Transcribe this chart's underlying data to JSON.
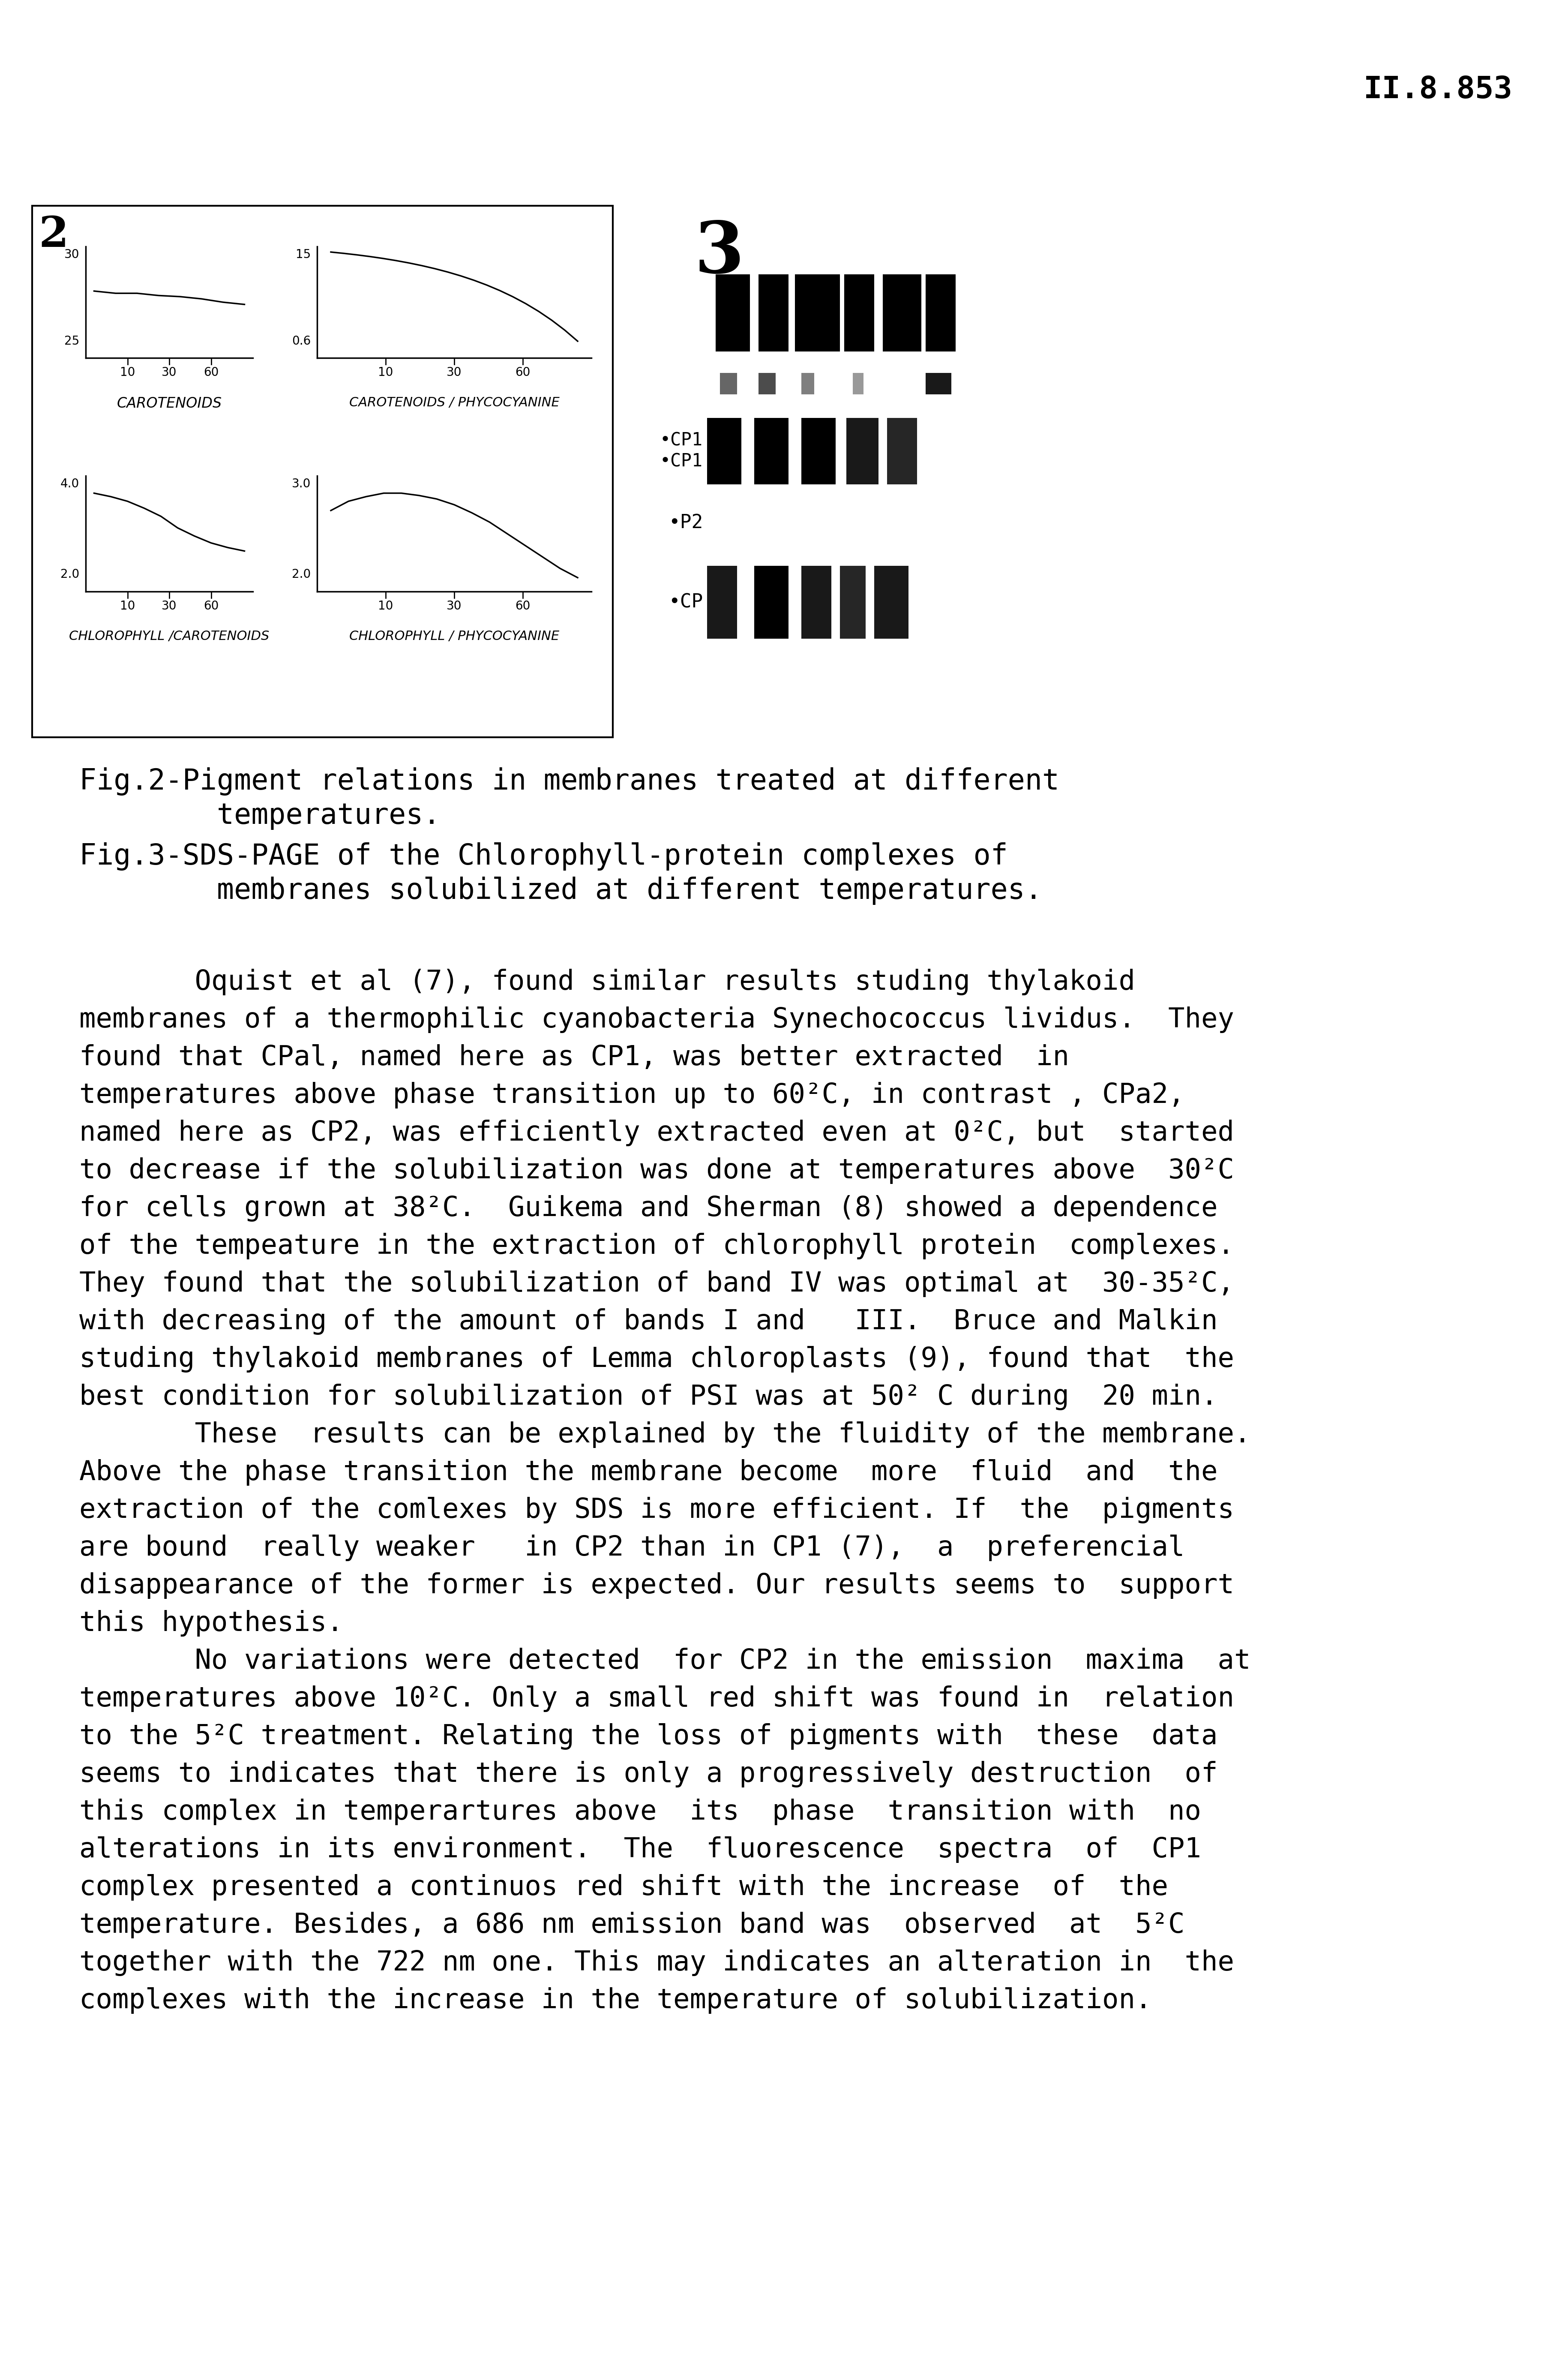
{
  "page_header": "II.8.853",
  "fig2_label": "2",
  "fig3_label": "3",
  "fig2_caption_line1": "Fig.2-Pigment relations in membranes treated at different",
  "fig2_caption_line2": "        temperatures.",
  "fig3_caption_line1": "Fig.3-SDS-PAGE of the Chlorophyll-protein complexes of",
  "fig3_caption_line2": "        membranes solubilized at different temperatures.",
  "body_text": [
    "       Oquist et al (7), found similar results studing thylakoid",
    "membranes of a thermophilic cyanobacteria Synechococcus lividus.  They",
    "found that CPal, named here as CP1, was better extracted  in",
    "temperatures above phase transition up to 60²C, in contrast , CPa2,",
    "named here as CP2, was efficiently extracted even at 0²C, but  started",
    "to decrease if the solubilization was done at temperatures above  30²C",
    "for cells grown at 38²C.  Guikema and Sherman (8) showed a dependence",
    "of the tempeature in the extraction of chlorophyll protein  complexes.",
    "They found that the solubilization of band IV was optimal at  30-35²C,",
    "with decreasing of the amount of bands I and   III.  Bruce and Malkin",
    "studing thylakoid membranes of Lemma chloroplasts (9), found that  the",
    "best condition for solubilization of PSI was at 50² C during  20 min.",
    "       These  results can be explained by the fluidity of the membrane.",
    "Above the phase transition the membrane become  more  fluid  and  the",
    "extraction of the comlexes by SDS is more efficient. If  the  pigments",
    "are bound  really weaker   in CP2 than in CP1 (7),  a  preferencial",
    "disappearance of the former is expected. Our results seems to  support",
    "this hypothesis.",
    "       No variations were detected  for CP2 in the emission  maxima  at",
    "temperatures above 10²C. Only a small red shift was found in  relation",
    "to the 5²C treatment. Relating the loss of pigments with  these  data",
    "seems to indicates that there is only a progressively destruction  of",
    "this complex in temperartures above  its  phase  transition with  no",
    "alterations in its environment.  The  fluorescence  spectra  of  CP1",
    "complex presented a continuos red shift with the increase  of  the",
    "temperature. Besides, a 686 nm emission band was  observed  at  5²C",
    "together with the 722 nm one. This may indicates an alteration in  the",
    "complexes with the increase in the temperature of solubilization."
  ],
  "background_color": "#ffffff",
  "text_color": "#000000"
}
